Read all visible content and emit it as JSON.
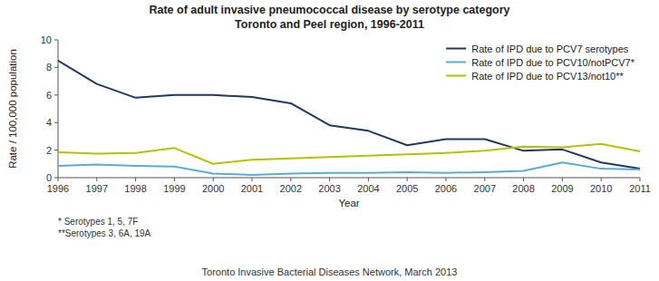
{
  "chart_data": {
    "type": "line",
    "title": "Rate of adult invasive pneumococcal disease by serotype category",
    "subtitle": "Toronto and Peel region, 1996-2011",
    "x_label": "Year",
    "y_label": "Rate / 100,000 population",
    "x": [
      1996,
      1997,
      1998,
      1999,
      2000,
      2001,
      2002,
      2003,
      2004,
      2005,
      2006,
      2007,
      2008,
      2009,
      2010,
      2011
    ],
    "series": [
      {
        "name": "Rate of IPD due to PCV7 serotypes",
        "color": "#1f3864",
        "values": [
          8.5,
          6.8,
          5.8,
          6.0,
          6.0,
          5.85,
          5.4,
          3.8,
          3.4,
          2.35,
          2.8,
          2.8,
          1.95,
          2.05,
          1.1,
          0.65
        ]
      },
      {
        "name": "Rate of IPD due to PCV10/notPCV7*",
        "color": "#5bacd4",
        "values": [
          0.85,
          0.95,
          0.85,
          0.8,
          0.3,
          0.2,
          0.3,
          0.35,
          0.35,
          0.4,
          0.35,
          0.4,
          0.5,
          1.1,
          0.65,
          0.6
        ]
      },
      {
        "name": "Rate of IPD due to PCV13/not10**",
        "color": "#b5c200",
        "values": [
          1.85,
          1.75,
          1.8,
          2.15,
          1.0,
          1.3,
          1.4,
          1.5,
          1.6,
          1.7,
          1.8,
          1.95,
          2.25,
          2.2,
          2.45,
          1.9
        ]
      }
    ],
    "xlim": [
      1996,
      2011
    ],
    "xticks": [
      1996,
      1997,
      1998,
      1999,
      2000,
      2001,
      2002,
      2003,
      2004,
      2005,
      2006,
      2007,
      2008,
      2009,
      2010,
      2011
    ],
    "ylim": [
      0,
      10
    ],
    "yticks": [
      0,
      2,
      4,
      6,
      8,
      10
    ],
    "grid": false,
    "legend": "upper right",
    "annotations": [
      "* Serotypes 1, 5, 7F",
      "**Serotypes 3, 6A, 19A",
      "Toronto Invasive Bacterial Diseases Network, March 2013"
    ]
  }
}
